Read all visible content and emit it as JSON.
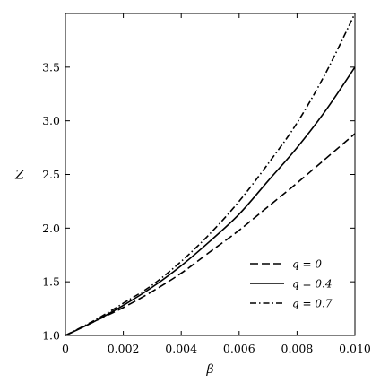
{
  "chart_data": {
    "type": "line",
    "title": "",
    "xlabel": "β",
    "ylabel": "Z",
    "xlim": [
      0,
      0.01
    ],
    "ylim": [
      1.0,
      4.0
    ],
    "x_ticks": [
      0,
      0.002,
      0.004,
      0.006,
      0.008,
      0.01
    ],
    "x_tick_labels": [
      "0",
      "0.002",
      "0.004",
      "0.006",
      "0.008",
      "0.010"
    ],
    "y_ticks": [
      1.0,
      1.5,
      2.0,
      2.5,
      3.0,
      3.5
    ],
    "y_tick_labels": [
      "1.0",
      "1.5",
      "2.0",
      "2.5",
      "3.0",
      "3.5"
    ],
    "grid": false,
    "legend_position": "lower-right",
    "x": [
      0,
      0.001,
      0.002,
      0.003,
      0.004,
      0.005,
      0.006,
      0.007,
      0.008,
      0.009,
      0.01
    ],
    "series": [
      {
        "name": "q = 0",
        "style": "dashed",
        "values": [
          1.0,
          1.13,
          1.26,
          1.41,
          1.58,
          1.78,
          1.98,
          2.2,
          2.42,
          2.65,
          2.88
        ]
      },
      {
        "name": "q = 0.4",
        "style": "solid",
        "values": [
          1.0,
          1.13,
          1.28,
          1.45,
          1.65,
          1.88,
          2.13,
          2.44,
          2.75,
          3.1,
          3.5
        ]
      },
      {
        "name": "q = 0.7",
        "style": "dashdot",
        "values": [
          1.0,
          1.14,
          1.3,
          1.47,
          1.69,
          1.95,
          2.25,
          2.6,
          2.98,
          3.45,
          4.0
        ]
      }
    ],
    "legend_labels": [
      "q = 0",
      "q = 0.4",
      "q = 0.7"
    ],
    "colors": {
      "line": "#000000",
      "background": "#ffffff"
    }
  }
}
